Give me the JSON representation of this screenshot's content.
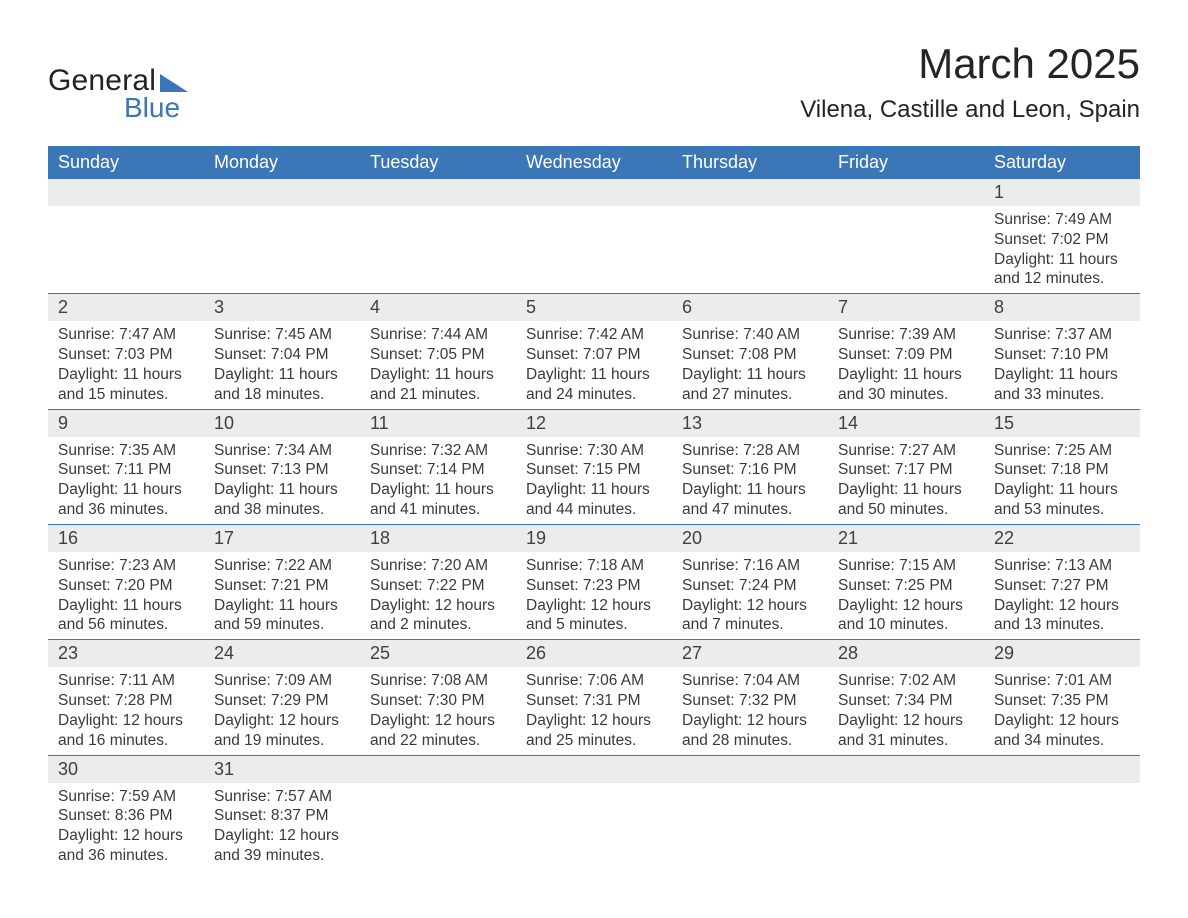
{
  "brand": {
    "word1": "General",
    "word2": "Blue"
  },
  "title": "March 2025",
  "location": "Vilena, Castille and Leon, Spain",
  "days_of_week": [
    "Sunday",
    "Monday",
    "Tuesday",
    "Wednesday",
    "Thursday",
    "Friday",
    "Saturday"
  ],
  "colors": {
    "header_bg": "#3b76b6",
    "header_text": "#ffffff",
    "daynum_bg": "#ececec",
    "text": "#3a3a3a",
    "page_bg": "#ffffff",
    "row_divider": "#3b76b6"
  },
  "typography": {
    "title_fontsize_pt": 32,
    "location_fontsize_pt": 18,
    "th_fontsize_pt": 14,
    "daynum_fontsize_pt": 14,
    "body_fontsize_pt": 12,
    "font_family": "Arial"
  },
  "layout": {
    "columns": 7,
    "rows": 6,
    "first_day_column_index": 6,
    "days_in_month": 31
  },
  "days": [
    {
      "n": 1,
      "sunrise": "7:49 AM",
      "sunset": "7:02 PM",
      "daylight": "11 hours and 12 minutes."
    },
    {
      "n": 2,
      "sunrise": "7:47 AM",
      "sunset": "7:03 PM",
      "daylight": "11 hours and 15 minutes."
    },
    {
      "n": 3,
      "sunrise": "7:45 AM",
      "sunset": "7:04 PM",
      "daylight": "11 hours and 18 minutes."
    },
    {
      "n": 4,
      "sunrise": "7:44 AM",
      "sunset": "7:05 PM",
      "daylight": "11 hours and 21 minutes."
    },
    {
      "n": 5,
      "sunrise": "7:42 AM",
      "sunset": "7:07 PM",
      "daylight": "11 hours and 24 minutes."
    },
    {
      "n": 6,
      "sunrise": "7:40 AM",
      "sunset": "7:08 PM",
      "daylight": "11 hours and 27 minutes."
    },
    {
      "n": 7,
      "sunrise": "7:39 AM",
      "sunset": "7:09 PM",
      "daylight": "11 hours and 30 minutes."
    },
    {
      "n": 8,
      "sunrise": "7:37 AM",
      "sunset": "7:10 PM",
      "daylight": "11 hours and 33 minutes."
    },
    {
      "n": 9,
      "sunrise": "7:35 AM",
      "sunset": "7:11 PM",
      "daylight": "11 hours and 36 minutes."
    },
    {
      "n": 10,
      "sunrise": "7:34 AM",
      "sunset": "7:13 PM",
      "daylight": "11 hours and 38 minutes."
    },
    {
      "n": 11,
      "sunrise": "7:32 AM",
      "sunset": "7:14 PM",
      "daylight": "11 hours and 41 minutes."
    },
    {
      "n": 12,
      "sunrise": "7:30 AM",
      "sunset": "7:15 PM",
      "daylight": "11 hours and 44 minutes."
    },
    {
      "n": 13,
      "sunrise": "7:28 AM",
      "sunset": "7:16 PM",
      "daylight": "11 hours and 47 minutes."
    },
    {
      "n": 14,
      "sunrise": "7:27 AM",
      "sunset": "7:17 PM",
      "daylight": "11 hours and 50 minutes."
    },
    {
      "n": 15,
      "sunrise": "7:25 AM",
      "sunset": "7:18 PM",
      "daylight": "11 hours and 53 minutes."
    },
    {
      "n": 16,
      "sunrise": "7:23 AM",
      "sunset": "7:20 PM",
      "daylight": "11 hours and 56 minutes."
    },
    {
      "n": 17,
      "sunrise": "7:22 AM",
      "sunset": "7:21 PM",
      "daylight": "11 hours and 59 minutes."
    },
    {
      "n": 18,
      "sunrise": "7:20 AM",
      "sunset": "7:22 PM",
      "daylight": "12 hours and 2 minutes."
    },
    {
      "n": 19,
      "sunrise": "7:18 AM",
      "sunset": "7:23 PM",
      "daylight": "12 hours and 5 minutes."
    },
    {
      "n": 20,
      "sunrise": "7:16 AM",
      "sunset": "7:24 PM",
      "daylight": "12 hours and 7 minutes."
    },
    {
      "n": 21,
      "sunrise": "7:15 AM",
      "sunset": "7:25 PM",
      "daylight": "12 hours and 10 minutes."
    },
    {
      "n": 22,
      "sunrise": "7:13 AM",
      "sunset": "7:27 PM",
      "daylight": "12 hours and 13 minutes."
    },
    {
      "n": 23,
      "sunrise": "7:11 AM",
      "sunset": "7:28 PM",
      "daylight": "12 hours and 16 minutes."
    },
    {
      "n": 24,
      "sunrise": "7:09 AM",
      "sunset": "7:29 PM",
      "daylight": "12 hours and 19 minutes."
    },
    {
      "n": 25,
      "sunrise": "7:08 AM",
      "sunset": "7:30 PM",
      "daylight": "12 hours and 22 minutes."
    },
    {
      "n": 26,
      "sunrise": "7:06 AM",
      "sunset": "7:31 PM",
      "daylight": "12 hours and 25 minutes."
    },
    {
      "n": 27,
      "sunrise": "7:04 AM",
      "sunset": "7:32 PM",
      "daylight": "12 hours and 28 minutes."
    },
    {
      "n": 28,
      "sunrise": "7:02 AM",
      "sunset": "7:34 PM",
      "daylight": "12 hours and 31 minutes."
    },
    {
      "n": 29,
      "sunrise": "7:01 AM",
      "sunset": "7:35 PM",
      "daylight": "12 hours and 34 minutes."
    },
    {
      "n": 30,
      "sunrise": "7:59 AM",
      "sunset": "8:36 PM",
      "daylight": "12 hours and 36 minutes."
    },
    {
      "n": 31,
      "sunrise": "7:57 AM",
      "sunset": "8:37 PM",
      "daylight": "12 hours and 39 minutes."
    }
  ],
  "labels": {
    "sunrise": "Sunrise:",
    "sunset": "Sunset:",
    "daylight": "Daylight:"
  }
}
